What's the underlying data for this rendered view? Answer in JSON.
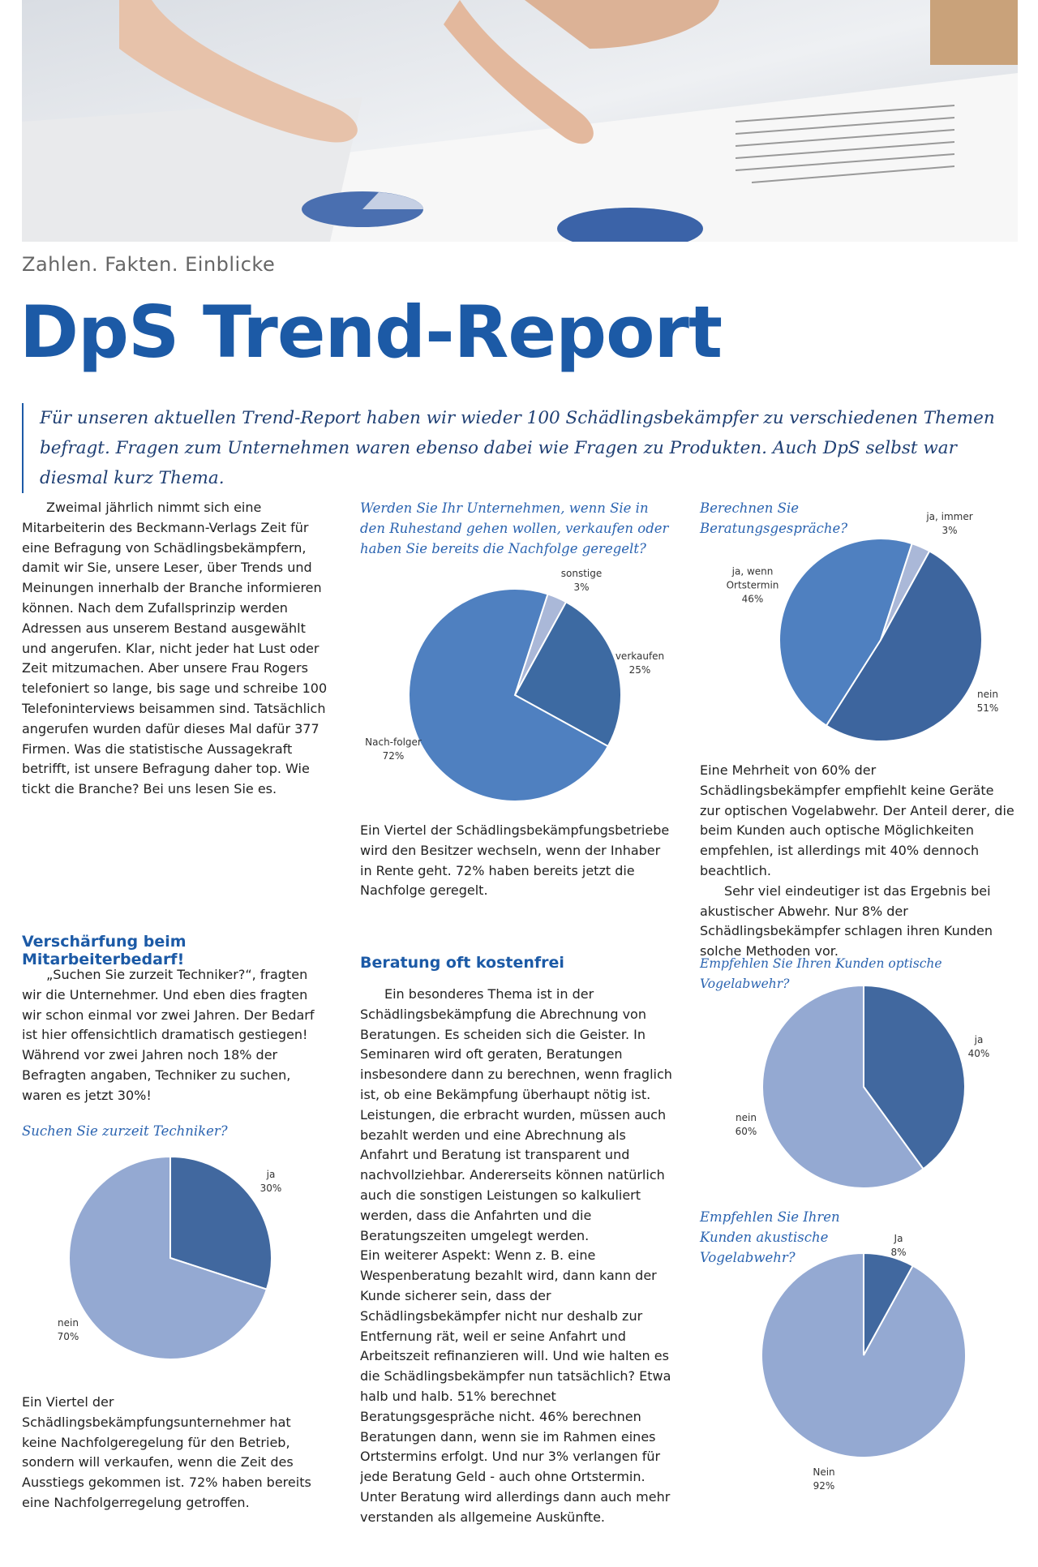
{
  "header": {
    "kicker": "Zahlen. Fakten. Einblicke",
    "title": "DpS Trend-Report",
    "intro": "Für unseren aktuellen Trend-Report haben wir wieder 100 Schädlingsbekämpfer zu verschiedenen Themen befragt. Fragen zum Unternehmen waren ebenso dabei wie Fragen zu Produkten. Auch DpS selbst war diesmal kurz Thema."
  },
  "article": {
    "intro_paragraph": "Zweimal jährlich nimmt sich eine Mitarbeiterin des Beckmann-Verlags Zeit für eine Befragung von Schädlingsbekämpfern, damit wir Sie, unsere Leser, über Trends und Meinungen innerhalb der Branche informieren können. Nach dem Zufallsprinzip werden Adressen aus unserem Bestand ausgewählt und angerufen. Klar, nicht jeder hat Lust oder Zeit mitzumachen. Aber unsere Frau Rogers telefoniert so lange, bis sage und schreibe 100 Telefoninterviews beisammen sind. Tatsächlich angerufen wurden dafür dieses Mal dafür 377 Firmen. Was die statistische Aussagekraft betrifft, ist unsere Befragung daher top. Wie tickt die Branche? Bei uns lesen Sie es.",
    "heading_staff": "Verschärfung beim Mitarbeiterbedarf!",
    "staff_paragraph": "„Suchen Sie zurzeit Techniker?“, fragten wir die Unternehmer. Und eben dies fragten wir schon einmal vor zwei Jahren. Der Bedarf ist hier offensichtlich dramatisch gestiegen! Während vor zwei Jahren noch 18% der Befragten angaben, Techniker zu suchen, waren es jetzt 30%!",
    "succession_paragraph_1": "Ein Viertel der Schädlingsbekämpfungsunternehmer hat keine Nachfolgeregelung für den Betrieb, sondern will verkaufen, wenn die Zeit des Ausstiegs gekommen ist. 72% haben bereits eine Nachfolgerregelung getroffen.",
    "succession_paragraph_2": "Ein Viertel der Schädlingsbekämpfungsbetriebe wird den Besitzer wechseln, wenn der Inhaber in Rente geht. 72% haben bereits jetzt die Nachfolge geregelt.",
    "heading_consulting": "Beratung oft kostenfrei",
    "consulting_paragraph_1": "Ein besonderes Thema ist in der Schädlingsbekämpfung die Abrechnung von Beratungen. Es scheiden sich die Geister. In Seminaren wird oft geraten, Beratungen insbesondere dann zu berechnen, wenn fraglich ist, ob eine Bekämpfung überhaupt nötig ist. Leistungen, die erbracht wurden, müssen auch bezahlt werden und eine Abrechnung als Anfahrt und Beratung ist transparent und nachvollziehbar. Andererseits können natürlich auch die sonstigen Leistungen so kalkuliert werden, dass die Anfahrten und die Beratungszeiten umgelegt werden.",
    "consulting_paragraph_2": "Ein weiterer Aspekt: Wenn z. B. eine Wespenberatung bezahlt wird, dann kann der Kunde sicherer sein, dass der Schädlingsbekämpfer nicht nur deshalb zur Entfernung rät, weil er seine Anfahrt und Arbeitszeit refinanzieren will. Und wie halten es die Schädlingsbekämpfer nun tatsächlich? Etwa halb und halb. 51% berechnet Beratungsgespräche nicht. 46% berechnen Beratungen dann, wenn sie im Rahmen eines Ortstermins erfolgt. Und nur 3% verlangen für jede Beratung Geld - auch ohne Ortstermin. Unter Beratung wird allerdings dann auch mehr verstanden als allgemeine Auskünfte.",
    "birds_paragraph_1": "Eine Mehrheit von 60% der Schädlingsbekämpfer empfiehlt keine Geräte zur optischen Vogelabwehr. Der Anteil derer, die beim Kunden auch optische Möglichkeiten empfehlen, ist allerdings mit 40% dennoch beachtlich.",
    "birds_paragraph_2": "Sehr viel eindeutiger ist das Ergebnis bei akustischer Abwehr. Nur 8% der Schädlingsbekämpfer schlagen ihren Kunden solche Methoden vor."
  },
  "charts": [
    {
      "type": "pie",
      "question": "Werden Sie Ihr Unternehmen, wenn Sie in den Ruhestand gehen wollen, verkaufen oder haben Sie bereits die Nachfolge geregelt?",
      "categories": [
        "sonstige",
        "verkaufen",
        "Nach-folger"
      ],
      "values": [
        3,
        25,
        72
      ],
      "value_labels": [
        "3%",
        "25%",
        "72%"
      ],
      "colors": [
        "#aab8d8",
        "#3d6aa2",
        "#4f80c0"
      ]
    },
    {
      "type": "pie",
      "question": "Berechnen Sie Beratungsgespräche?",
      "categories": [
        "ja, immer",
        "nein",
        "ja, wenn Ortstermin"
      ],
      "values": [
        3,
        51,
        46
      ],
      "value_labels": [
        "3%",
        "51%",
        "46%"
      ],
      "colors": [
        "#aab8d8",
        "#3d659e",
        "#4f80c0"
      ]
    },
    {
      "type": "pie",
      "question": "Empfehlen Sie Ihren Kunden optische Vogelabwehr?",
      "categories": [
        "ja",
        "nein"
      ],
      "values": [
        40,
        60
      ],
      "value_labels": [
        "40%",
        "60%"
      ],
      "colors": [
        "#41689f",
        "#94a9d2"
      ]
    },
    {
      "type": "pie",
      "question": "Empfehlen Sie Ihren Kunden akustische Vogelabwehr?",
      "categories": [
        "Ja",
        "Nein"
      ],
      "values": [
        8,
        92
      ],
      "value_labels": [
        "8%",
        "92%"
      ],
      "colors": [
        "#41689f",
        "#94a9d2"
      ]
    },
    {
      "type": "pie",
      "question": "Suchen Sie zurzeit Techniker?",
      "categories": [
        "ja",
        "nein"
      ],
      "values": [
        30,
        70
      ],
      "value_labels": [
        "30%",
        "70%"
      ],
      "colors": [
        "#41689f",
        "#94a9d2"
      ]
    }
  ]
}
